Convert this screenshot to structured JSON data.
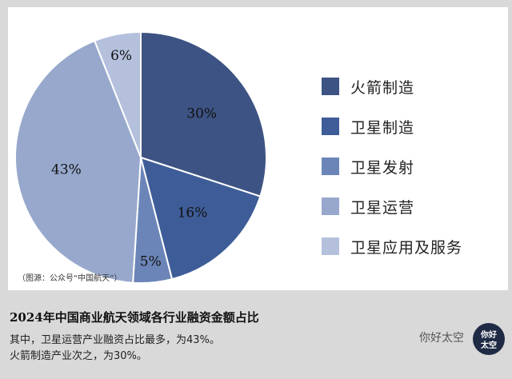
{
  "chart_data": {
    "type": "pie",
    "slices": [
      {
        "label": "火箭制造",
        "value": 30,
        "display": "30%",
        "color": "#3d5383"
      },
      {
        "label": "卫星制造",
        "value": 16,
        "display": "16%",
        "color": "#3e5d98"
      },
      {
        "label": "卫星发射",
        "value": 5,
        "display": "5%",
        "color": "#6b85b8"
      },
      {
        "label": "卫星运营",
        "value": 43,
        "display": "43%",
        "color": "#97a8cc"
      },
      {
        "label": "卫星应用及服务",
        "value": 6,
        "display": "6%",
        "color": "#b4c0dc"
      }
    ],
    "legend_position": "right"
  },
  "source": "（图源：公众号“中国航天”）",
  "caption": {
    "title": "2024年中国商业航天领域各行业融资金额占比",
    "line1": "其中，卫星运营产业融资占比最多，为43%。",
    "line2": "火箭制造产业次之，为30%。"
  },
  "brand": {
    "name": "你好太空",
    "logo_text": "你好 太空"
  }
}
